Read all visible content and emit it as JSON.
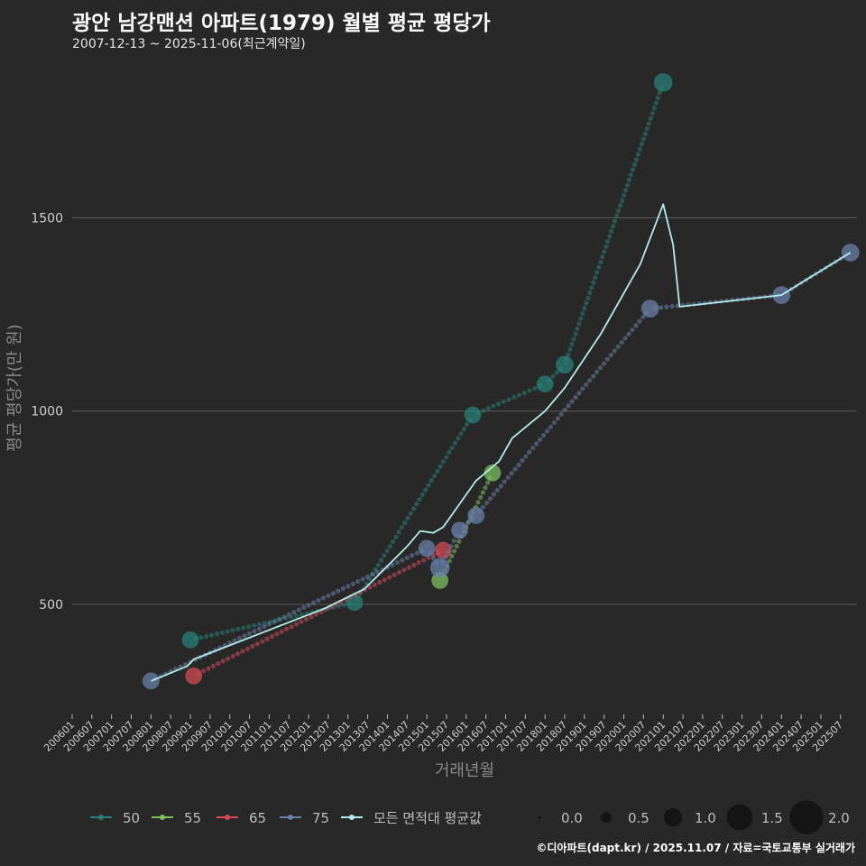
{
  "header": {
    "title": "광안 남강맨션 아파트(1979) 월별 평균 평당가",
    "subtitle": "2007-12-13 ~ 2025-11-06(최근계약일)"
  },
  "footer": {
    "credit": "©디아파트(dapt.kr) / 2025.11.07 / 자료=국토교통부 실거래가"
  },
  "chart_data": {
    "type": "line",
    "title": "광안 남강맨션 아파트(1979) 월별 평균 평당가",
    "xlabel": "거래년월",
    "ylabel": "평균 평당가(만 원)",
    "ylim": [
      220,
      1900
    ],
    "yticks": [
      500,
      1000,
      1500
    ],
    "x_start": "2006-01",
    "x_end": "2025-12",
    "xticks": [
      "200601",
      "200607",
      "200701",
      "200707",
      "200801",
      "200807",
      "200901",
      "200907",
      "201001",
      "201007",
      "201101",
      "201107",
      "201201",
      "201207",
      "201301",
      "201307",
      "201401",
      "201407",
      "201501",
      "201507",
      "201601",
      "201607",
      "201701",
      "201707",
      "201801",
      "201807",
      "201901",
      "201907",
      "202001",
      "202007",
      "202101",
      "202107",
      "202201",
      "202207",
      "202301",
      "202307",
      "202401",
      "202407",
      "202501",
      "202507"
    ],
    "colors": {
      "50": "#2a7f78",
      "55": "#7bbf5e",
      "65": "#d24b57",
      "75": "#6a7fa8",
      "avg": "#b4ecec"
    },
    "series": [
      {
        "name": "50",
        "points": [
          {
            "x": "2009-01",
            "y": 408,
            "size": 1.2
          },
          {
            "x": "2013-03",
            "y": 505,
            "size": 1.2
          },
          {
            "x": "2016-03",
            "y": 990,
            "size": 1.2
          },
          {
            "x": "2018-01",
            "y": 1070,
            "size": 1.2
          },
          {
            "x": "2018-07",
            "y": 1120,
            "size": 1.3
          },
          {
            "x": "2021-01",
            "y": 1850,
            "size": 1.4
          }
        ]
      },
      {
        "name": "55",
        "points": [
          {
            "x": "2015-05",
            "y": 562,
            "size": 1.2
          },
          {
            "x": "2016-09",
            "y": 840,
            "size": 1.2
          }
        ]
      },
      {
        "name": "65",
        "points": [
          {
            "x": "2009-02",
            "y": 315,
            "size": 1.2
          },
          {
            "x": "2015-06",
            "y": 640,
            "size": 1.2
          }
        ]
      },
      {
        "name": "75",
        "points": [
          {
            "x": "2008-01",
            "y": 302,
            "size": 1.2
          },
          {
            "x": "2015-01",
            "y": 645,
            "size": 1.2
          },
          {
            "x": "2015-05",
            "y": 595,
            "size": 1.5
          },
          {
            "x": "2015-11",
            "y": 692,
            "size": 1.2
          },
          {
            "x": "2016-04",
            "y": 730,
            "size": 1.2
          },
          {
            "x": "2020-09",
            "y": 1265,
            "size": 1.3
          },
          {
            "x": "2024-01",
            "y": 1300,
            "size": 1.3
          },
          {
            "x": "2025-10",
            "y": 1410,
            "size": 1.3
          }
        ]
      }
    ],
    "average_line": {
      "name": "모든 면적대 평균값",
      "points": [
        {
          "x": "2008-01",
          "y": 302
        },
        {
          "x": "2008-12",
          "y": 340
        },
        {
          "x": "2009-02",
          "y": 358
        },
        {
          "x": "2012-06",
          "y": 490
        },
        {
          "x": "2013-06",
          "y": 540
        },
        {
          "x": "2014-07",
          "y": 650
        },
        {
          "x": "2014-11",
          "y": 690
        },
        {
          "x": "2015-03",
          "y": 685
        },
        {
          "x": "2015-06",
          "y": 700
        },
        {
          "x": "2015-11",
          "y": 760
        },
        {
          "x": "2016-04",
          "y": 820
        },
        {
          "x": "2016-11",
          "y": 870
        },
        {
          "x": "2017-03",
          "y": 930
        },
        {
          "x": "2018-01",
          "y": 1000
        },
        {
          "x": "2018-07",
          "y": 1060
        },
        {
          "x": "2019-06",
          "y": 1200
        },
        {
          "x": "2020-06",
          "y": 1380
        },
        {
          "x": "2021-01",
          "y": 1535
        },
        {
          "x": "2021-04",
          "y": 1430
        },
        {
          "x": "2021-06",
          "y": 1270
        },
        {
          "x": "2024-01",
          "y": 1300
        },
        {
          "x": "2025-10",
          "y": 1410
        }
      ]
    },
    "legend": {
      "position": "bottom",
      "items": [
        "50",
        "55",
        "65",
        "75",
        "모든 면적대 평균값"
      ],
      "size_title": "",
      "sizes": [
        "0.0",
        "0.5",
        "1.0",
        "1.5",
        "2.0"
      ]
    }
  }
}
